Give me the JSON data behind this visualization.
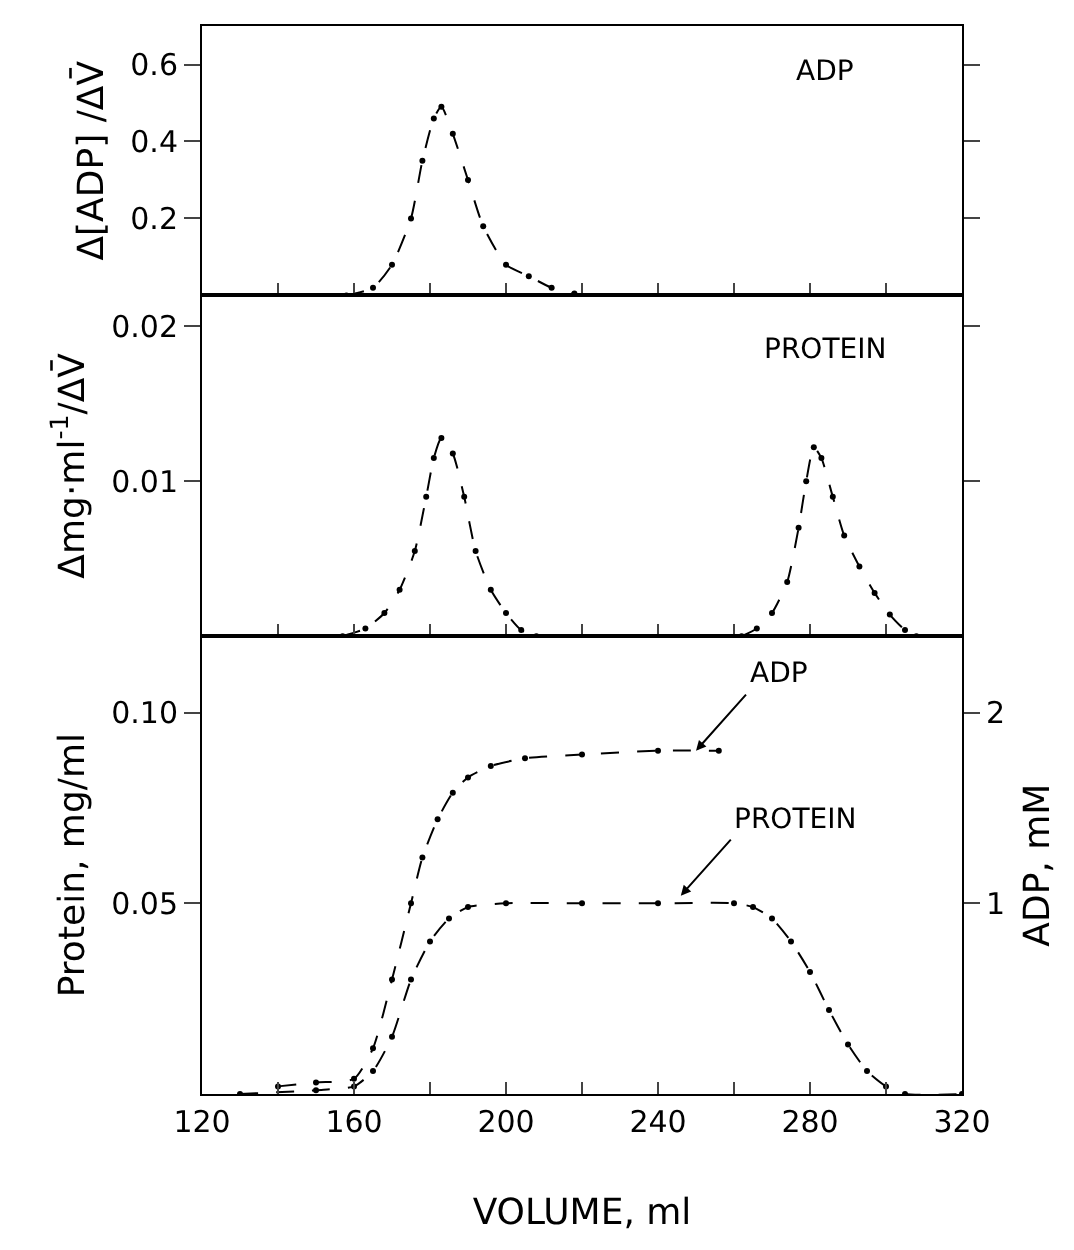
{
  "chart_data": [
    {
      "type": "line",
      "ylabel": "Δ[ADP] /ΔV̄",
      "annotations": [
        "ADP"
      ],
      "xlim": [
        120,
        320
      ],
      "xticks": [
        120,
        140,
        160,
        180,
        200,
        220,
        240,
        260,
        280,
        300,
        320
      ],
      "ylim": [
        0,
        0.7
      ],
      "yticks": [
        0.2,
        0.4,
        0.6
      ],
      "tick_labels": "y",
      "marker": "circle",
      "line_style": "dashed",
      "series": [
        {
          "color": "#000000",
          "x": [
            158,
            165,
            170,
            175,
            178,
            181,
            183,
            186,
            190,
            194,
            200,
            206,
            212,
            218
          ],
          "values": [
            0,
            0.02,
            0.08,
            0.2,
            0.35,
            0.46,
            0.49,
            0.42,
            0.3,
            0.18,
            0.08,
            0.05,
            0.02,
            0.005
          ]
        }
      ]
    },
    {
      "type": "line",
      "ylabel": "Δmg·ml$^{-1}$/ΔV̄",
      "annotations": [
        "PROTEIN"
      ],
      "xlim": [
        120,
        320
      ],
      "xticks": [
        120,
        140,
        160,
        180,
        200,
        220,
        240,
        260,
        280,
        300,
        320
      ],
      "ylim": [
        0,
        0.022
      ],
      "yticks": [
        0.01,
        0.02
      ],
      "tick_labels": "y",
      "marker": "circle",
      "line_style": "dashed",
      "series": [
        {
          "color": "#000000",
          "x": [
            157,
            163,
            168,
            172,
            176,
            179,
            181,
            183,
            186,
            189,
            192,
            196,
            200,
            204,
            208
          ],
          "values": [
            0,
            0.0005,
            0.0015,
            0.003,
            0.0055,
            0.009,
            0.0115,
            0.0128,
            0.0118,
            0.009,
            0.0055,
            0.003,
            0.0015,
            0.0004,
            0
          ]
        },
        {
          "color": "#000000",
          "x": [
            262,
            266,
            270,
            274,
            277,
            279,
            281,
            283,
            286,
            289,
            293,
            297,
            301,
            305,
            308
          ],
          "values": [
            0,
            0.0005,
            0.0015,
            0.0035,
            0.007,
            0.01,
            0.0122,
            0.0115,
            0.009,
            0.0065,
            0.0045,
            0.0028,
            0.0014,
            0.0004,
            0
          ]
        }
      ]
    },
    {
      "type": "line",
      "xlabel": "VOLUME, ml",
      "ylabel": "Protein, mg/ml",
      "y2label": "ADP, mM",
      "annotations": [
        {
          "text": "ADP",
          "x": 250,
          "y": 0.09
        },
        {
          "text": "PROTEIN",
          "x": 246,
          "y": 0.052
        }
      ],
      "xlim": [
        120,
        320
      ],
      "xticks": [
        120,
        {
          "value": 140,
          "label": null
        },
        160,
        {
          "value": 180,
          "label": null
        },
        200,
        {
          "value": 220,
          "label": null
        },
        240,
        {
          "value": 260,
          "label": null
        },
        280,
        {
          "value": 300,
          "label": null
        },
        320
      ],
      "ylim": [
        0,
        0.12
      ],
      "yticks": [
        0.05,
        {
          "value": 0.1,
          "label": "0.10"
        }
      ],
      "y2lim": [
        0,
        2.4
      ],
      "y2ticks": [
        1,
        2
      ],
      "marker": "circle",
      "line_style": "dashed",
      "series": [
        {
          "color": "#000000",
          "axis": "y2",
          "x": [
            140,
            150,
            160,
            165,
            170,
            175,
            178,
            182,
            186,
            190,
            196,
            205,
            220,
            240,
            256
          ],
          "values": [
            0.04,
            0.06,
            0.08,
            0.24,
            0.6,
            1.0,
            1.24,
            1.44,
            1.58,
            1.66,
            1.72,
            1.76,
            1.78,
            1.8,
            1.8
          ]
        },
        {
          "color": "#000000",
          "x": [
            130,
            150,
            160,
            165,
            170,
            175,
            180,
            185,
            190,
            200,
            220,
            240,
            260,
            265,
            270,
            275,
            280,
            285,
            290,
            295,
            300,
            305,
            320
          ],
          "values": [
            0,
            0.001,
            0.002,
            0.006,
            0.015,
            0.03,
            0.04,
            0.046,
            0.049,
            0.05,
            0.05,
            0.05,
            0.05,
            0.049,
            0.046,
            0.04,
            0.032,
            0.022,
            0.013,
            0.006,
            0.002,
            0,
            0
          ]
        }
      ]
    }
  ]
}
